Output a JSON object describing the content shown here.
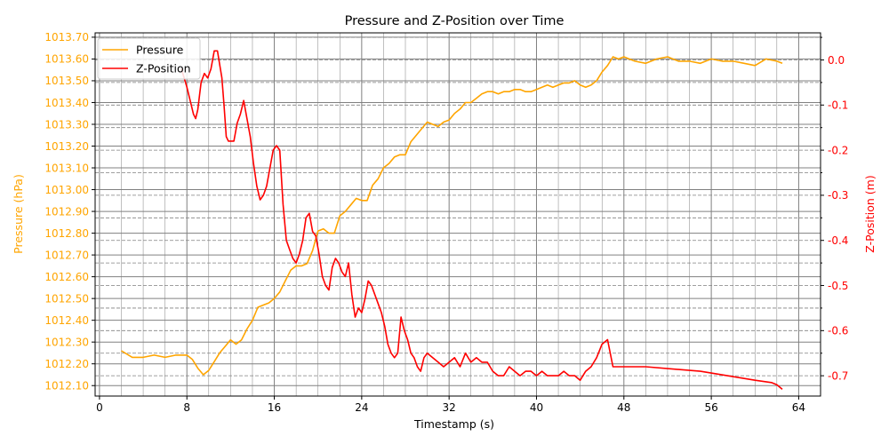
{
  "chart_data": {
    "type": "line",
    "title": "Pressure and Z-Position over Time",
    "xlabel": "Timestamp (s)",
    "ylabel_left": "Pressure (hPa)",
    "ylabel_right": "Z-Position (m)",
    "xlim": [
      -0.4,
      66
    ],
    "ylim_left": [
      1012.052,
      1013.72
    ],
    "ylim_right": [
      -0.745,
      0.06
    ],
    "x_ticks": [
      "0",
      "8",
      "16",
      "24",
      "32",
      "40",
      "48",
      "56",
      "64"
    ],
    "y_left_ticks": [
      "1012.10",
      "1012.20",
      "1012.30",
      "1012.40",
      "1012.50",
      "1012.60",
      "1012.70",
      "1012.80",
      "1012.90",
      "1013.00",
      "1013.10",
      "1013.20",
      "1013.30",
      "1013.40",
      "1013.50",
      "1013.60",
      "1013.70"
    ],
    "y_right_ticks": [
      "0.0",
      "-0.1",
      "-0.2",
      "-0.3",
      "-0.4",
      "-0.5",
      "-0.6",
      "-0.7"
    ],
    "grid": true,
    "legend_position": "top-left",
    "colors": {
      "pressure": "#ffa500",
      "z_position": "#ff0000",
      "grid": "#808080"
    },
    "series": [
      {
        "name": "Pressure",
        "axis": "left",
        "color": "#ffa500",
        "x": [
          2.0,
          3.0,
          4.0,
          5.0,
          6.0,
          7.0,
          8.0,
          8.5,
          9.0,
          9.5,
          10.0,
          10.5,
          11.0,
          11.5,
          12.0,
          12.5,
          13.0,
          13.5,
          14.0,
          14.5,
          15.0,
          15.5,
          16.0,
          16.5,
          17.0,
          17.5,
          18.0,
          18.5,
          19.0,
          19.5,
          20.0,
          20.5,
          21.0,
          21.5,
          22.0,
          22.5,
          23.0,
          23.5,
          24.0,
          24.5,
          25.0,
          25.5,
          26.0,
          26.5,
          27.0,
          27.5,
          28.0,
          28.5,
          29.0,
          29.5,
          30.0,
          30.5,
          31.0,
          31.5,
          32.0,
          32.5,
          33.0,
          33.5,
          34.0,
          34.5,
          35.0,
          35.5,
          36.0,
          36.5,
          37.0,
          37.5,
          38.0,
          38.5,
          39.0,
          39.5,
          40.0,
          40.5,
          41.0,
          41.5,
          42.0,
          42.5,
          43.0,
          43.5,
          44.0,
          44.5,
          45.0,
          45.5,
          46.0,
          46.5,
          47.0,
          47.5,
          48.0,
          49.0,
          50.0,
          51.0,
          52.0,
          53.0,
          54.0,
          55.0,
          56.0,
          57.0,
          58.0,
          59.0,
          60.0,
          61.0,
          62.0,
          62.5
        ],
        "values": [
          1012.26,
          1012.23,
          1012.23,
          1012.24,
          1012.23,
          1012.24,
          1012.24,
          1012.22,
          1012.18,
          1012.15,
          1012.17,
          1012.21,
          1012.25,
          1012.28,
          1012.31,
          1012.29,
          1012.31,
          1012.36,
          1012.4,
          1012.46,
          1012.47,
          1012.48,
          1012.5,
          1012.53,
          1012.58,
          1012.63,
          1012.65,
          1012.65,
          1012.66,
          1012.72,
          1012.81,
          1012.82,
          1012.8,
          1012.8,
          1012.88,
          1012.9,
          1012.93,
          1012.96,
          1012.95,
          1012.95,
          1013.02,
          1013.05,
          1013.1,
          1013.12,
          1013.15,
          1013.16,
          1013.16,
          1013.22,
          1013.25,
          1013.28,
          1013.31,
          1013.3,
          1013.29,
          1013.31,
          1013.32,
          1013.35,
          1013.37,
          1013.4,
          1013.4,
          1013.42,
          1013.44,
          1013.45,
          1013.45,
          1013.44,
          1013.45,
          1013.45,
          1013.46,
          1013.46,
          1013.45,
          1013.45,
          1013.46,
          1013.47,
          1013.48,
          1013.47,
          1013.48,
          1013.49,
          1013.49,
          1013.5,
          1013.48,
          1013.47,
          1013.48,
          1013.5,
          1013.54,
          1013.57,
          1013.61,
          1013.6,
          1013.61,
          1013.59,
          1013.58,
          1013.6,
          1013.61,
          1013.59,
          1013.59,
          1013.58,
          1013.6,
          1013.59,
          1013.59,
          1013.58,
          1013.57,
          1013.6,
          1013.59,
          1013.58
        ]
      },
      {
        "name": "Z-Position",
        "axis": "right",
        "color": "#ff0000",
        "x": [
          7.5,
          8.0,
          8.3,
          8.6,
          8.8,
          9.0,
          9.3,
          9.6,
          9.9,
          10.2,
          10.5,
          10.8,
          11.0,
          11.2,
          11.4,
          11.6,
          11.8,
          12.0,
          12.3,
          12.6,
          12.9,
          13.2,
          13.5,
          13.8,
          14.1,
          14.4,
          14.7,
          15.0,
          15.3,
          15.6,
          15.9,
          16.2,
          16.5,
          16.8,
          17.1,
          17.4,
          17.7,
          18.0,
          18.3,
          18.6,
          18.9,
          19.2,
          19.5,
          19.8,
          20.1,
          20.4,
          20.7,
          21.0,
          21.3,
          21.6,
          21.9,
          22.2,
          22.5,
          22.8,
          23.1,
          23.4,
          23.7,
          24.0,
          24.3,
          24.6,
          24.9,
          25.2,
          25.5,
          25.8,
          26.1,
          26.4,
          26.7,
          27.0,
          27.3,
          27.6,
          27.9,
          28.2,
          28.5,
          28.8,
          29.1,
          29.4,
          29.7,
          30.0,
          30.5,
          31.0,
          31.5,
          32.0,
          32.5,
          33.0,
          33.5,
          34.0,
          34.5,
          35.0,
          35.5,
          36.0,
          36.5,
          37.0,
          37.5,
          38.0,
          38.5,
          39.0,
          39.5,
          40.0,
          40.5,
          41.0,
          41.5,
          42.0,
          42.5,
          43.0,
          43.5,
          44.0,
          44.5,
          45.0,
          45.5,
          46.0,
          46.5,
          47.0,
          50.0,
          55.0,
          60.0,
          61.5,
          62.0,
          62.5
        ],
        "values": [
          -0.02,
          -0.06,
          -0.09,
          -0.12,
          -0.13,
          -0.11,
          -0.05,
          -0.03,
          -0.04,
          -0.02,
          0.02,
          0.02,
          -0.01,
          -0.04,
          -0.1,
          -0.17,
          -0.18,
          -0.18,
          -0.18,
          -0.14,
          -0.12,
          -0.09,
          -0.13,
          -0.17,
          -0.23,
          -0.28,
          -0.31,
          -0.3,
          -0.28,
          -0.24,
          -0.2,
          -0.19,
          -0.2,
          -0.32,
          -0.4,
          -0.42,
          -0.44,
          -0.45,
          -0.43,
          -0.4,
          -0.35,
          -0.34,
          -0.38,
          -0.39,
          -0.43,
          -0.48,
          -0.5,
          -0.51,
          -0.46,
          -0.44,
          -0.45,
          -0.47,
          -0.48,
          -0.45,
          -0.52,
          -0.57,
          -0.55,
          -0.56,
          -0.53,
          -0.49,
          -0.5,
          -0.52,
          -0.54,
          -0.56,
          -0.59,
          -0.63,
          -0.65,
          -0.66,
          -0.65,
          -0.57,
          -0.6,
          -0.62,
          -0.65,
          -0.66,
          -0.68,
          -0.69,
          -0.66,
          -0.65,
          -0.66,
          -0.67,
          -0.68,
          -0.67,
          -0.66,
          -0.68,
          -0.65,
          -0.67,
          -0.66,
          -0.67,
          -0.67,
          -0.69,
          -0.7,
          -0.7,
          -0.68,
          -0.69,
          -0.7,
          -0.69,
          -0.69,
          -0.7,
          -0.69,
          -0.7,
          -0.7,
          -0.7,
          -0.69,
          -0.7,
          -0.7,
          -0.71,
          -0.69,
          -0.68,
          -0.66,
          -0.63,
          -0.62,
          -0.68,
          -0.68,
          -0.69,
          -0.71,
          -0.715,
          -0.72,
          -0.73
        ]
      }
    ]
  }
}
